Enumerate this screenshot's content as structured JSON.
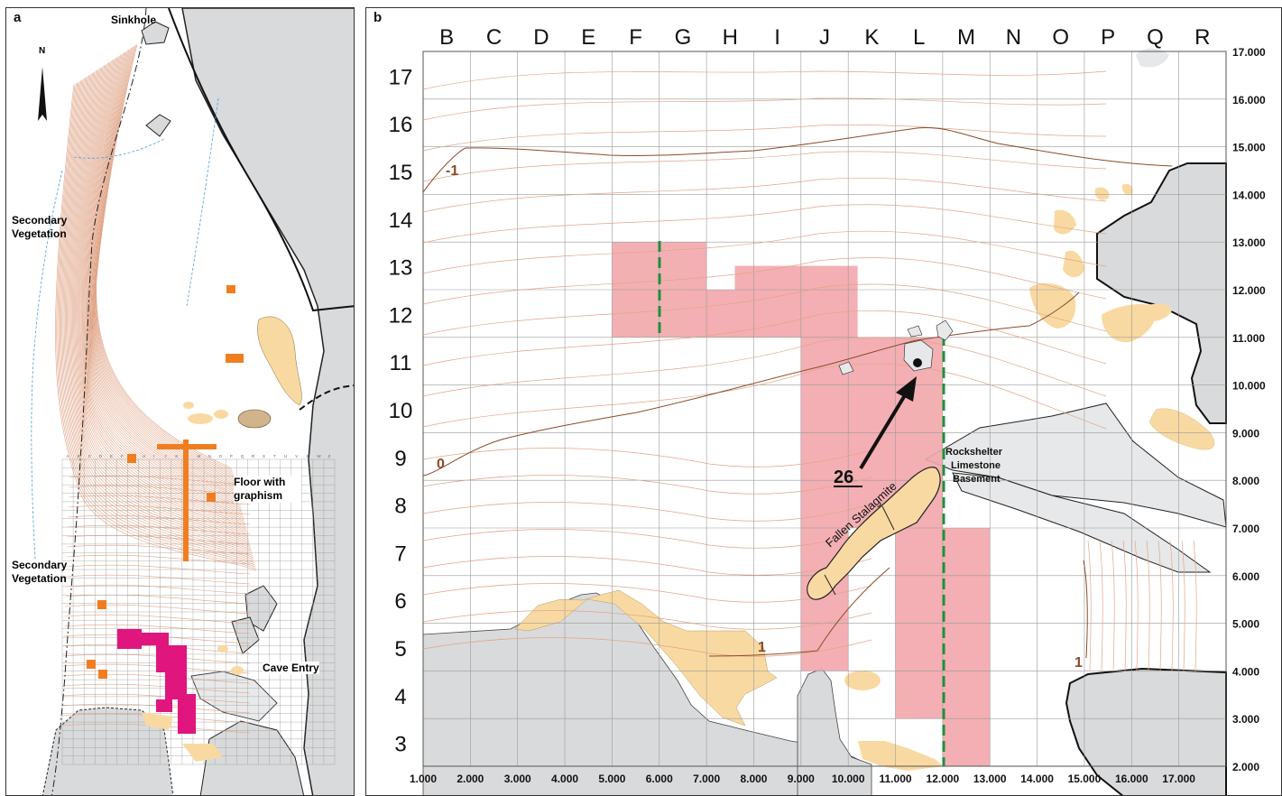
{
  "panel_a": {
    "letter": "a",
    "north": "N",
    "labels": {
      "sinkhole": "Sinkhole",
      "secondary_vegetation_top": "Secondary Vegetation",
      "floor_with_graphism": "Floor with graphism",
      "secondary_vegetation_bottom": "Secondary Vegetation",
      "cave_entry": "Cave Entry"
    },
    "grid_columns": [
      "A",
      "B",
      "C",
      "D",
      "E",
      "F",
      "G",
      "H",
      "I",
      "J",
      "K",
      "L",
      "M",
      "N",
      "O",
      "P",
      "Q",
      "R",
      "S",
      "T",
      "U",
      "V",
      "X",
      "W",
      "Z"
    ]
  },
  "panel_b": {
    "letter": "b",
    "column_letters": [
      "B",
      "C",
      "D",
      "E",
      "F",
      "G",
      "H",
      "I",
      "J",
      "K",
      "L",
      "M",
      "N",
      "O",
      "P",
      "Q",
      "R"
    ],
    "row_numbers": [
      "17",
      "16",
      "15",
      "14",
      "13",
      "12",
      "11",
      "10",
      "9",
      "8",
      "7",
      "6",
      "5",
      "4",
      "3"
    ],
    "x_ticks": [
      "1.000",
      "2.000",
      "3.000",
      "4.000",
      "5.000",
      "6.000",
      "7.000",
      "8.000",
      "9.000",
      "10.000",
      "11.000",
      "12.000",
      "13.000",
      "14.000",
      "15.000",
      "16.000",
      "17.000"
    ],
    "y_ticks": [
      "17.000",
      "16.000",
      "15.000",
      "14.000",
      "13.000",
      "12.000",
      "11.000",
      "10.000",
      "9.000",
      "8.000",
      "7.000",
      "6.000",
      "5.000",
      "4.000",
      "3.000",
      "2.000"
    ],
    "contour_labels": [
      "-1",
      "0",
      "1",
      "1"
    ],
    "marker": "26",
    "labels": {
      "fallen_stalagmite": "Fallen Stalagmite",
      "rockshelter": "Rockshelter",
      "limestone": "Limestone",
      "basement": "Basement"
    }
  },
  "colors": {
    "excavation_pink": "#f2a7ab",
    "sediment_tan": "#f9d9a2",
    "rock_grey": "#d9dadb",
    "rock_dark_grey": "#c4c5c6",
    "contour_brown": "#e0a588",
    "contour_index": "#8b4a2b",
    "section_green": "#1e8f3c",
    "excavation_orange": "#f07e20",
    "excavation_magenta": "#e0157d",
    "drainage_blue": "#4a9fd8"
  }
}
